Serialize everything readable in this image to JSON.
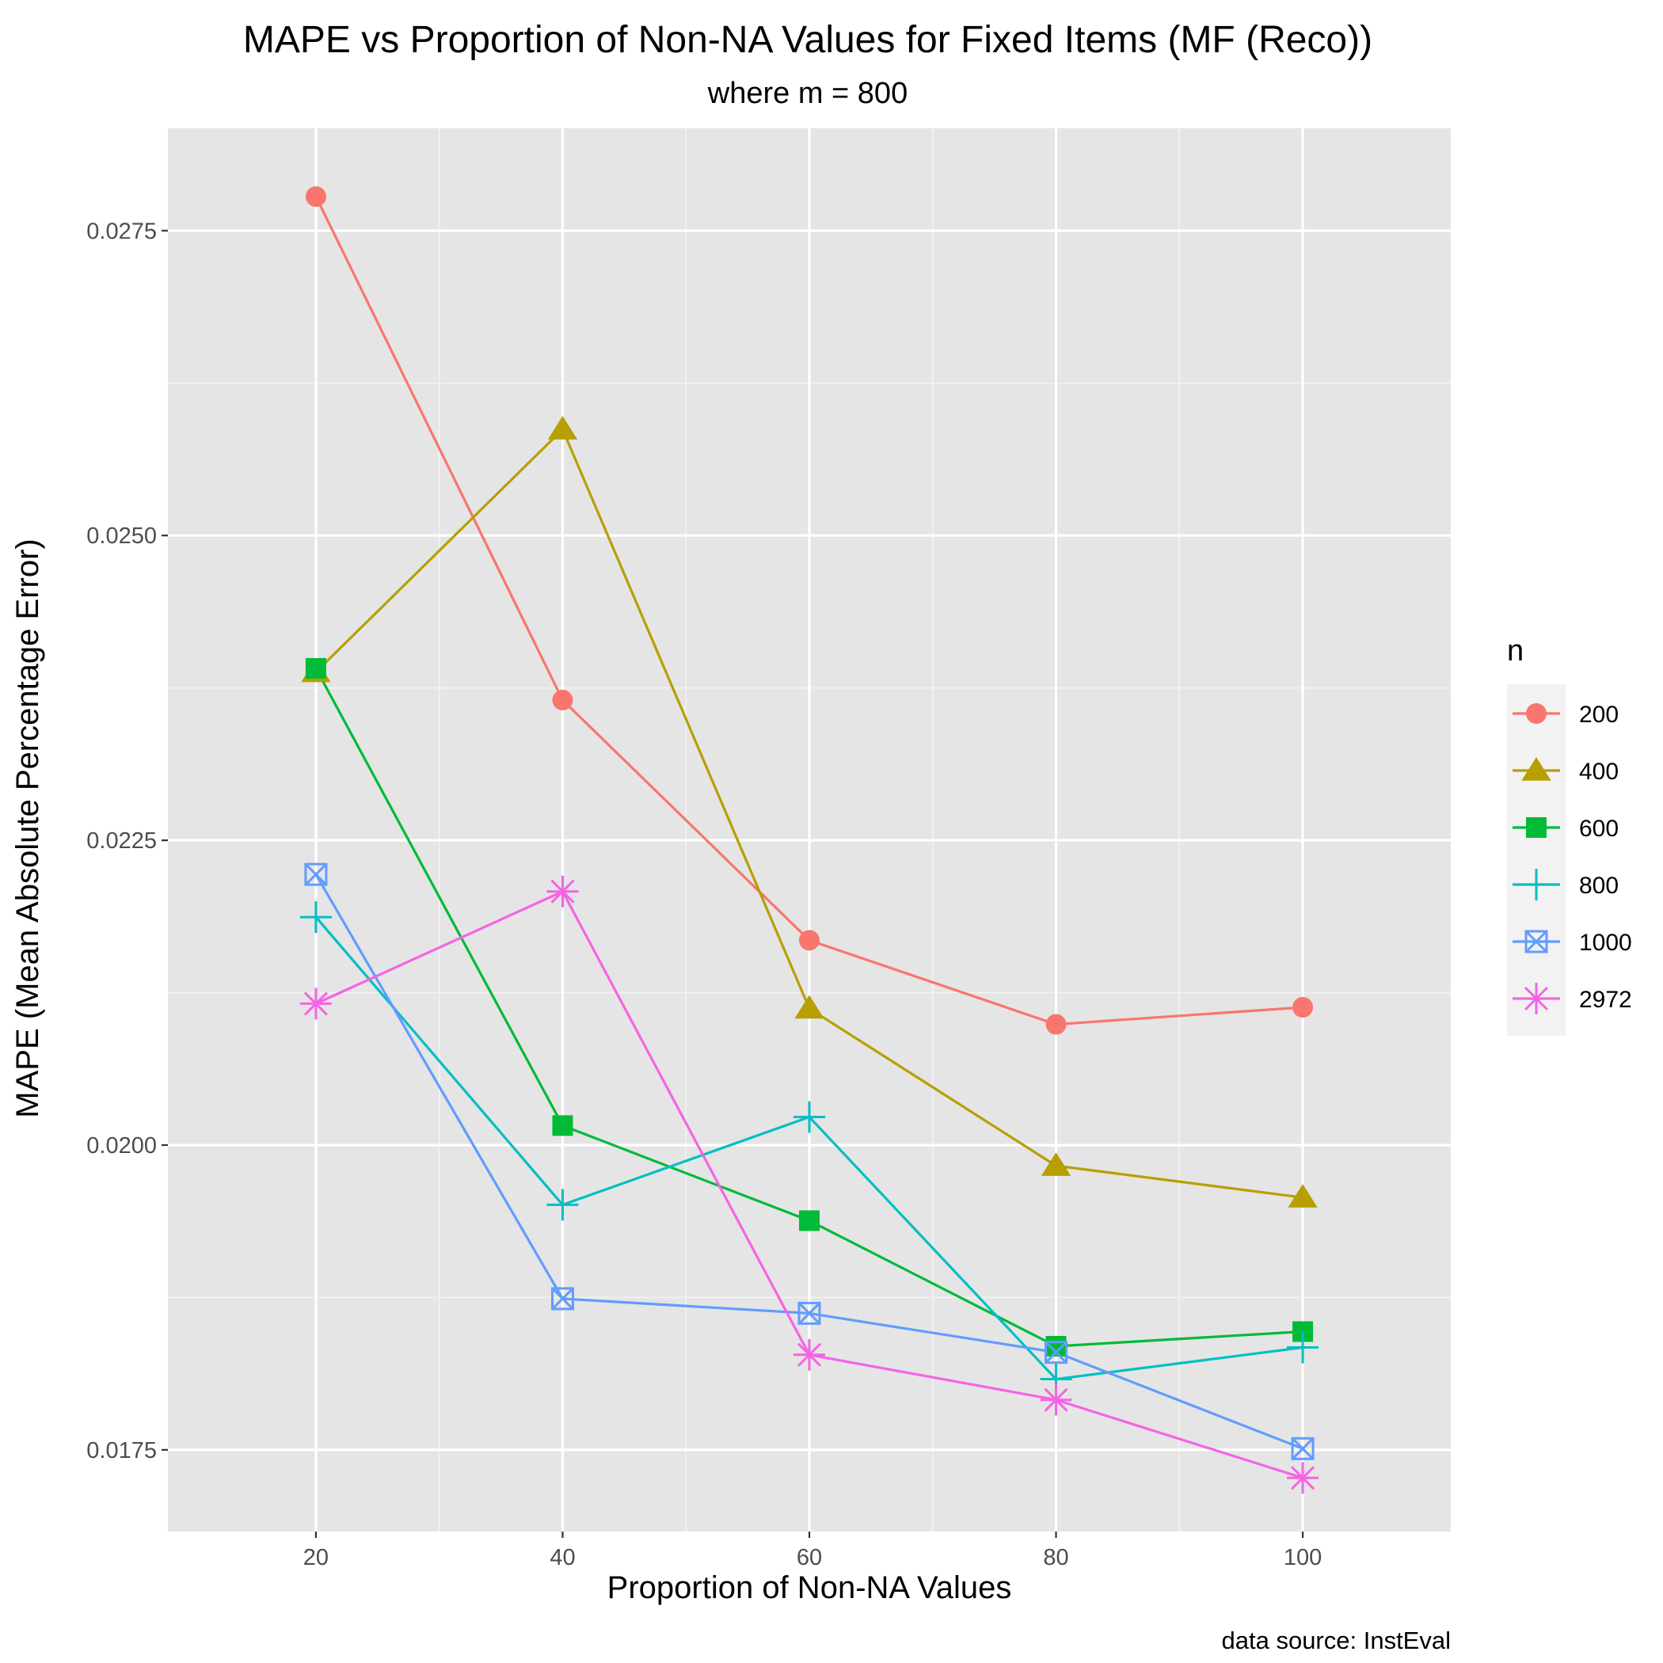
{
  "chart_data": {
    "type": "line",
    "title": "MAPE vs Proportion of Non-NA Values for Fixed Items (MF (Reco))",
    "subtitle": "where m = 800",
    "xlabel": "Proportion of Non-NA Values",
    "ylabel": "MAPE (Mean Absolute Percentage Error)",
    "caption": "data source: InstEval",
    "x": [
      20,
      40,
      60,
      80,
      100
    ],
    "xlim": [
      8,
      112
    ],
    "ylim": [
      0.01683,
      0.02834
    ],
    "x_ticks": [
      20,
      40,
      60,
      80,
      100
    ],
    "x_tick_labels": [
      "20",
      "40",
      "60",
      "80",
      "100"
    ],
    "y_ticks": [
      0.0175,
      0.02,
      0.0225,
      0.025,
      0.0275
    ],
    "y_tick_labels": [
      "0.0175",
      "0.0200",
      "0.0225",
      "0.0250",
      "0.0275"
    ],
    "grid": true,
    "background": "#e5e5e5",
    "legend": {
      "title": "n",
      "position": "right"
    },
    "series": [
      {
        "name": "200",
        "color": "#f8766d",
        "shape": "circle",
        "values": [
          0.02778,
          0.02365,
          0.02168,
          0.02099,
          0.02113
        ]
      },
      {
        "name": "400",
        "color": "#b79f00",
        "shape": "triangle",
        "values": [
          0.02388,
          0.02587,
          0.02112,
          0.01983,
          0.01957
        ]
      },
      {
        "name": "600",
        "color": "#00ba38",
        "shape": "square",
        "values": [
          0.02391,
          0.02016,
          0.01938,
          0.01835,
          0.01847
        ]
      },
      {
        "name": "800",
        "color": "#00bfc4",
        "shape": "plus",
        "values": [
          0.02187,
          0.01951,
          0.02023,
          0.01808,
          0.01834
        ]
      },
      {
        "name": "1000",
        "color": "#619cff",
        "shape": "square-cross",
        "values": [
          0.02222,
          0.01874,
          0.01862,
          0.0183,
          0.01751
        ]
      },
      {
        "name": "2972",
        "color": "#f564e3",
        "shape": "asterisk",
        "values": [
          0.02116,
          0.02208,
          0.01828,
          0.01791,
          0.01727
        ]
      }
    ]
  }
}
